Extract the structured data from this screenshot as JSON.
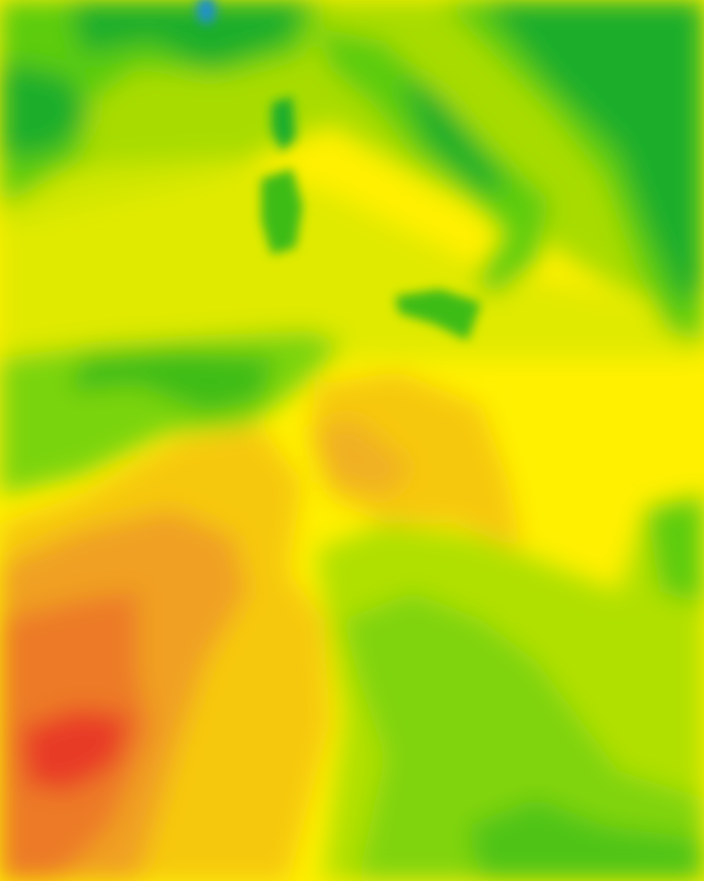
{
  "map": {
    "kind": "temperature-heatmap",
    "palette": {
      "cold_blue": "#1a8fd0",
      "teal": "#14a060",
      "dark_green": "#1fae2a",
      "green": "#5ccc10",
      "light_green": "#a8dc00",
      "yellow_green": "#d8e800",
      "yellow": "#ffee00",
      "amber": "#f6c810",
      "orange": "#f0a020",
      "dark_orange": "#ec7a28",
      "red": "#e83a28"
    }
  }
}
